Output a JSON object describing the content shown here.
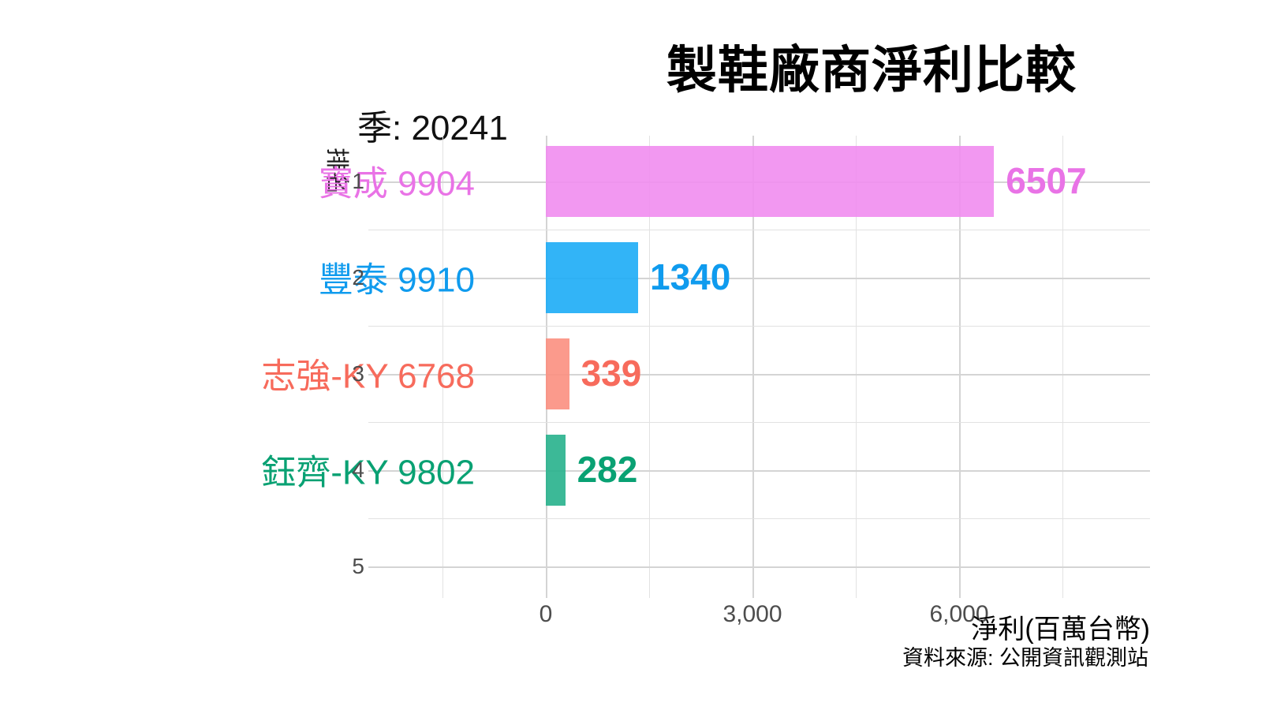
{
  "header": {
    "title": "製鞋廠商淨利比較",
    "frame_label": "季: 20241"
  },
  "axes": {
    "y_title": "排名",
    "x_title": "淨利(百萬台幣)",
    "x_tick_labels": [
      "0",
      "3,000",
      "6,000"
    ],
    "y_tick_labels": [
      "1",
      "2",
      "3",
      "4",
      "5"
    ]
  },
  "caption": "資料來源: 公開資訊觀測站",
  "chart_data": {
    "type": "bar",
    "orientation": "horizontal",
    "title": "製鞋廠商淨利比較",
    "frame_label": "季: 20241",
    "xlabel": "淨利(百萬台幣)",
    "ylabel": "排名",
    "categories": [
      "寶成 9904",
      "豐泰 9910",
      "志強-KY 6768",
      "鈺齊-KY 9802"
    ],
    "values": [
      6507,
      1340,
      339,
      282
    ],
    "x_ticks": [
      0,
      3000,
      6000
    ],
    "x_minor_ticks": [
      -1500,
      1500,
      4500,
      7500
    ],
    "x_range_displayed": [
      -2600,
      8800
    ],
    "y_ticks": [
      1,
      2,
      3,
      4,
      5
    ],
    "grid": "major+minor",
    "legend": "none",
    "bars": [
      {
        "rank": 1,
        "label": "寶成 9904",
        "value": 6507,
        "value_label": "6507",
        "bar_color": "#F18DF0",
        "text_color": "#E973E6"
      },
      {
        "rank": 2,
        "label": "豐泰 9910",
        "value": 1340,
        "value_label": "1340",
        "bar_color": "#1CACF6",
        "text_color": "#0F9BEE"
      },
      {
        "rank": 3,
        "label": "志強-KY 6768",
        "value": 339,
        "value_label": "339",
        "bar_color": "#FB8F7F",
        "text_color": "#F76B5C"
      },
      {
        "rank": 4,
        "label": "鈺齊-KY 9802",
        "value": 282,
        "value_label": "282",
        "bar_color": "#27B18C",
        "text_color": "#09A173"
      }
    ]
  }
}
